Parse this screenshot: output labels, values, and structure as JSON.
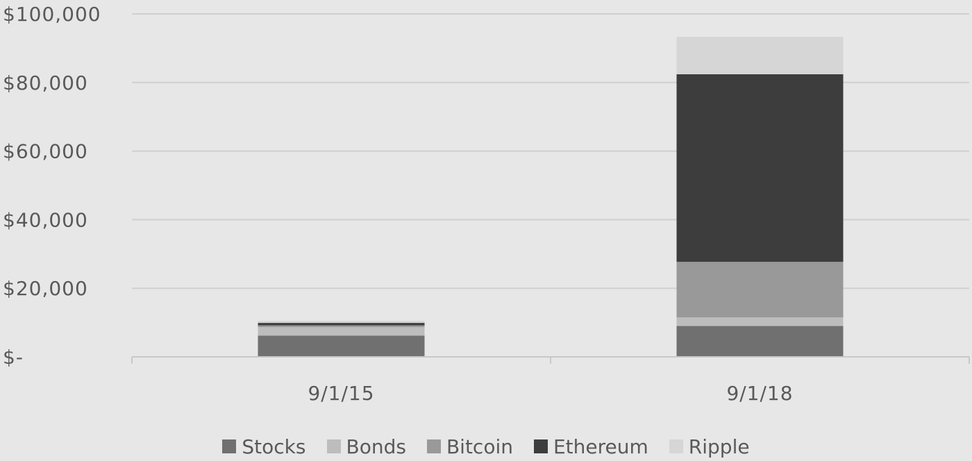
{
  "chart_data": {
    "type": "bar",
    "stacked": true,
    "title": "",
    "xlabel": "",
    "ylabel": "",
    "categories": [
      "9/1/15",
      "9/1/18"
    ],
    "ylim": [
      0,
      100000
    ],
    "y_ticks": [
      {
        "value": 0,
        "label": "$-"
      },
      {
        "value": 20000,
        "label": "$20,000"
      },
      {
        "value": 40000,
        "label": "$40,000"
      },
      {
        "value": 60000,
        "label": "$60,000"
      },
      {
        "value": 80000,
        "label": "$80,000"
      },
      {
        "value": 100000,
        "label": "$100,000"
      }
    ],
    "grid": true,
    "legend_position": "bottom",
    "series": [
      {
        "name": "Stocks",
        "color": "#707070",
        "values": [
          6200,
          9000
        ]
      },
      {
        "name": "Bonds",
        "color": "#bdbdbd",
        "values": [
          2500,
          2500
        ]
      },
      {
        "name": "Bitcoin",
        "color": "#999999",
        "values": [
          500,
          16200
        ]
      },
      {
        "name": "Ethereum",
        "color": "#3d3d3d",
        "values": [
          700,
          54700
        ]
      },
      {
        "name": "Ripple",
        "color": "#d6d6d6",
        "values": [
          600,
          10900
        ]
      }
    ]
  }
}
